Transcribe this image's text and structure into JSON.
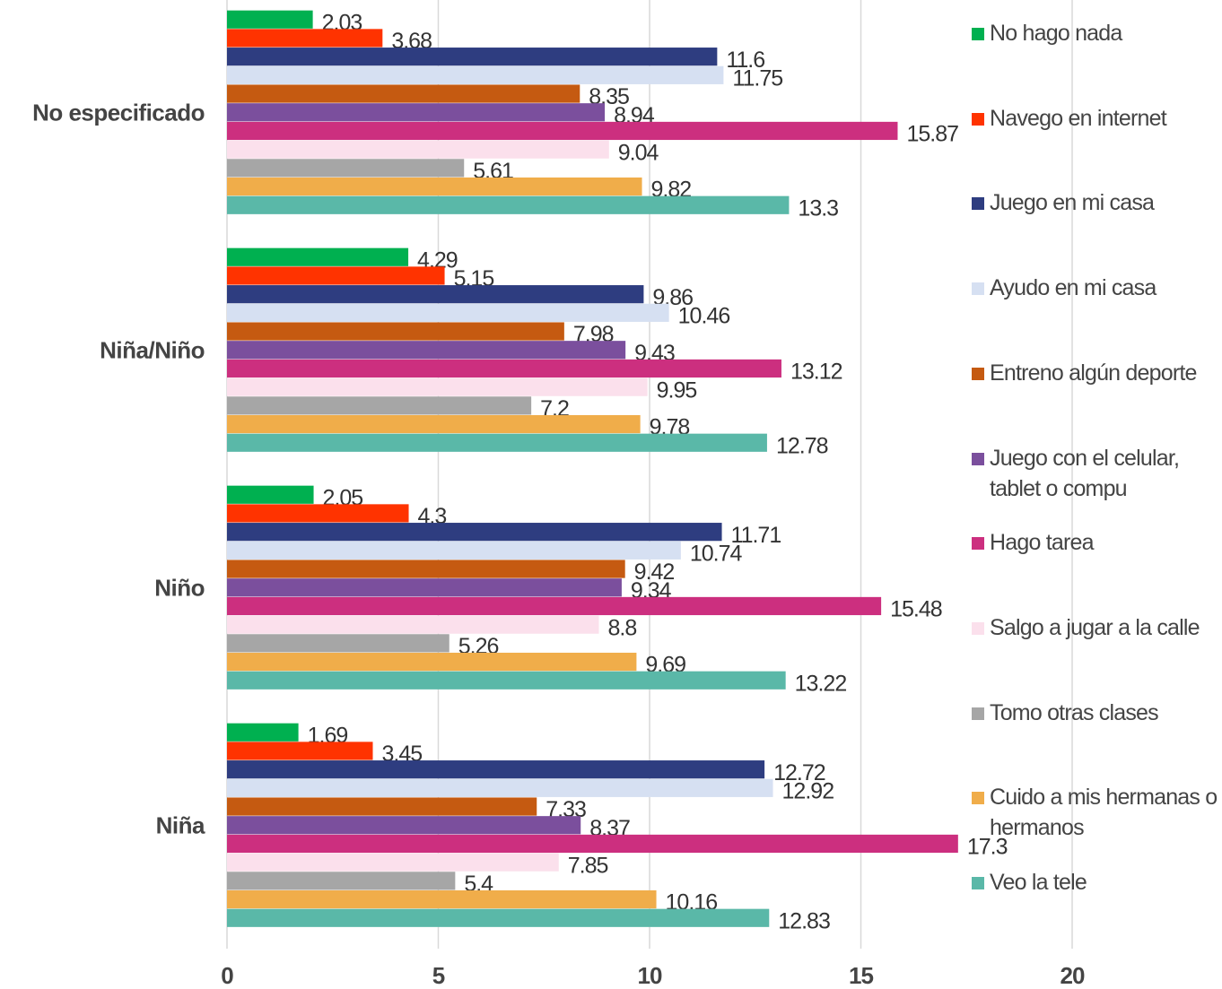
{
  "chart_data": {
    "type": "bar",
    "orientation": "horizontal",
    "categories": [
      "No especificado",
      "Niña/Niño",
      "Niño",
      "Niña"
    ],
    "series": [
      {
        "name": "No hago nada",
        "color": "#00b050",
        "values": [
          2.03,
          4.29,
          2.05,
          1.69
        ]
      },
      {
        "name": "Navego en internet",
        "color": "#ff3300",
        "values": [
          3.68,
          5.15,
          4.3,
          3.45
        ]
      },
      {
        "name": "Juego en mi casa",
        "color": "#2e3d80",
        "values": [
          11.6,
          9.86,
          11.71,
          12.72
        ]
      },
      {
        "name": "Ayudo en mi casa",
        "color": "#d6e0f2",
        "values": [
          11.75,
          10.46,
          10.74,
          12.92
        ]
      },
      {
        "name": "Entreno algún deporte",
        "color": "#c55a11",
        "values": [
          8.35,
          7.98,
          9.42,
          7.33
        ]
      },
      {
        "name": "Juego con el celular, tablet o compu",
        "color": "#7b4f9d",
        "values": [
          8.94,
          9.43,
          9.34,
          8.37
        ]
      },
      {
        "name": "Hago tarea",
        "color": "#cc2f7f",
        "values": [
          15.87,
          13.12,
          15.48,
          17.3
        ]
      },
      {
        "name": "Salgo a jugar a la calle",
        "color": "#fbe0ec",
        "values": [
          9.04,
          9.95,
          8.8,
          7.85
        ]
      },
      {
        "name": "Tomo otras clases",
        "color": "#a6a6a6",
        "values": [
          5.61,
          7.2,
          5.26,
          5.4
        ]
      },
      {
        "name": "Cuido a mis hermanas o hermanos",
        "color": "#f0ad4a",
        "values": [
          9.82,
          9.78,
          9.69,
          10.16
        ]
      },
      {
        "name": "Veo la tele",
        "color": "#5ab8a8",
        "values": [
          13.3,
          12.78,
          13.22,
          12.83
        ]
      }
    ],
    "xlim": [
      0,
      20
    ],
    "xticks": [
      0,
      5,
      10,
      15,
      20
    ],
    "grid": true,
    "legend": "right"
  }
}
